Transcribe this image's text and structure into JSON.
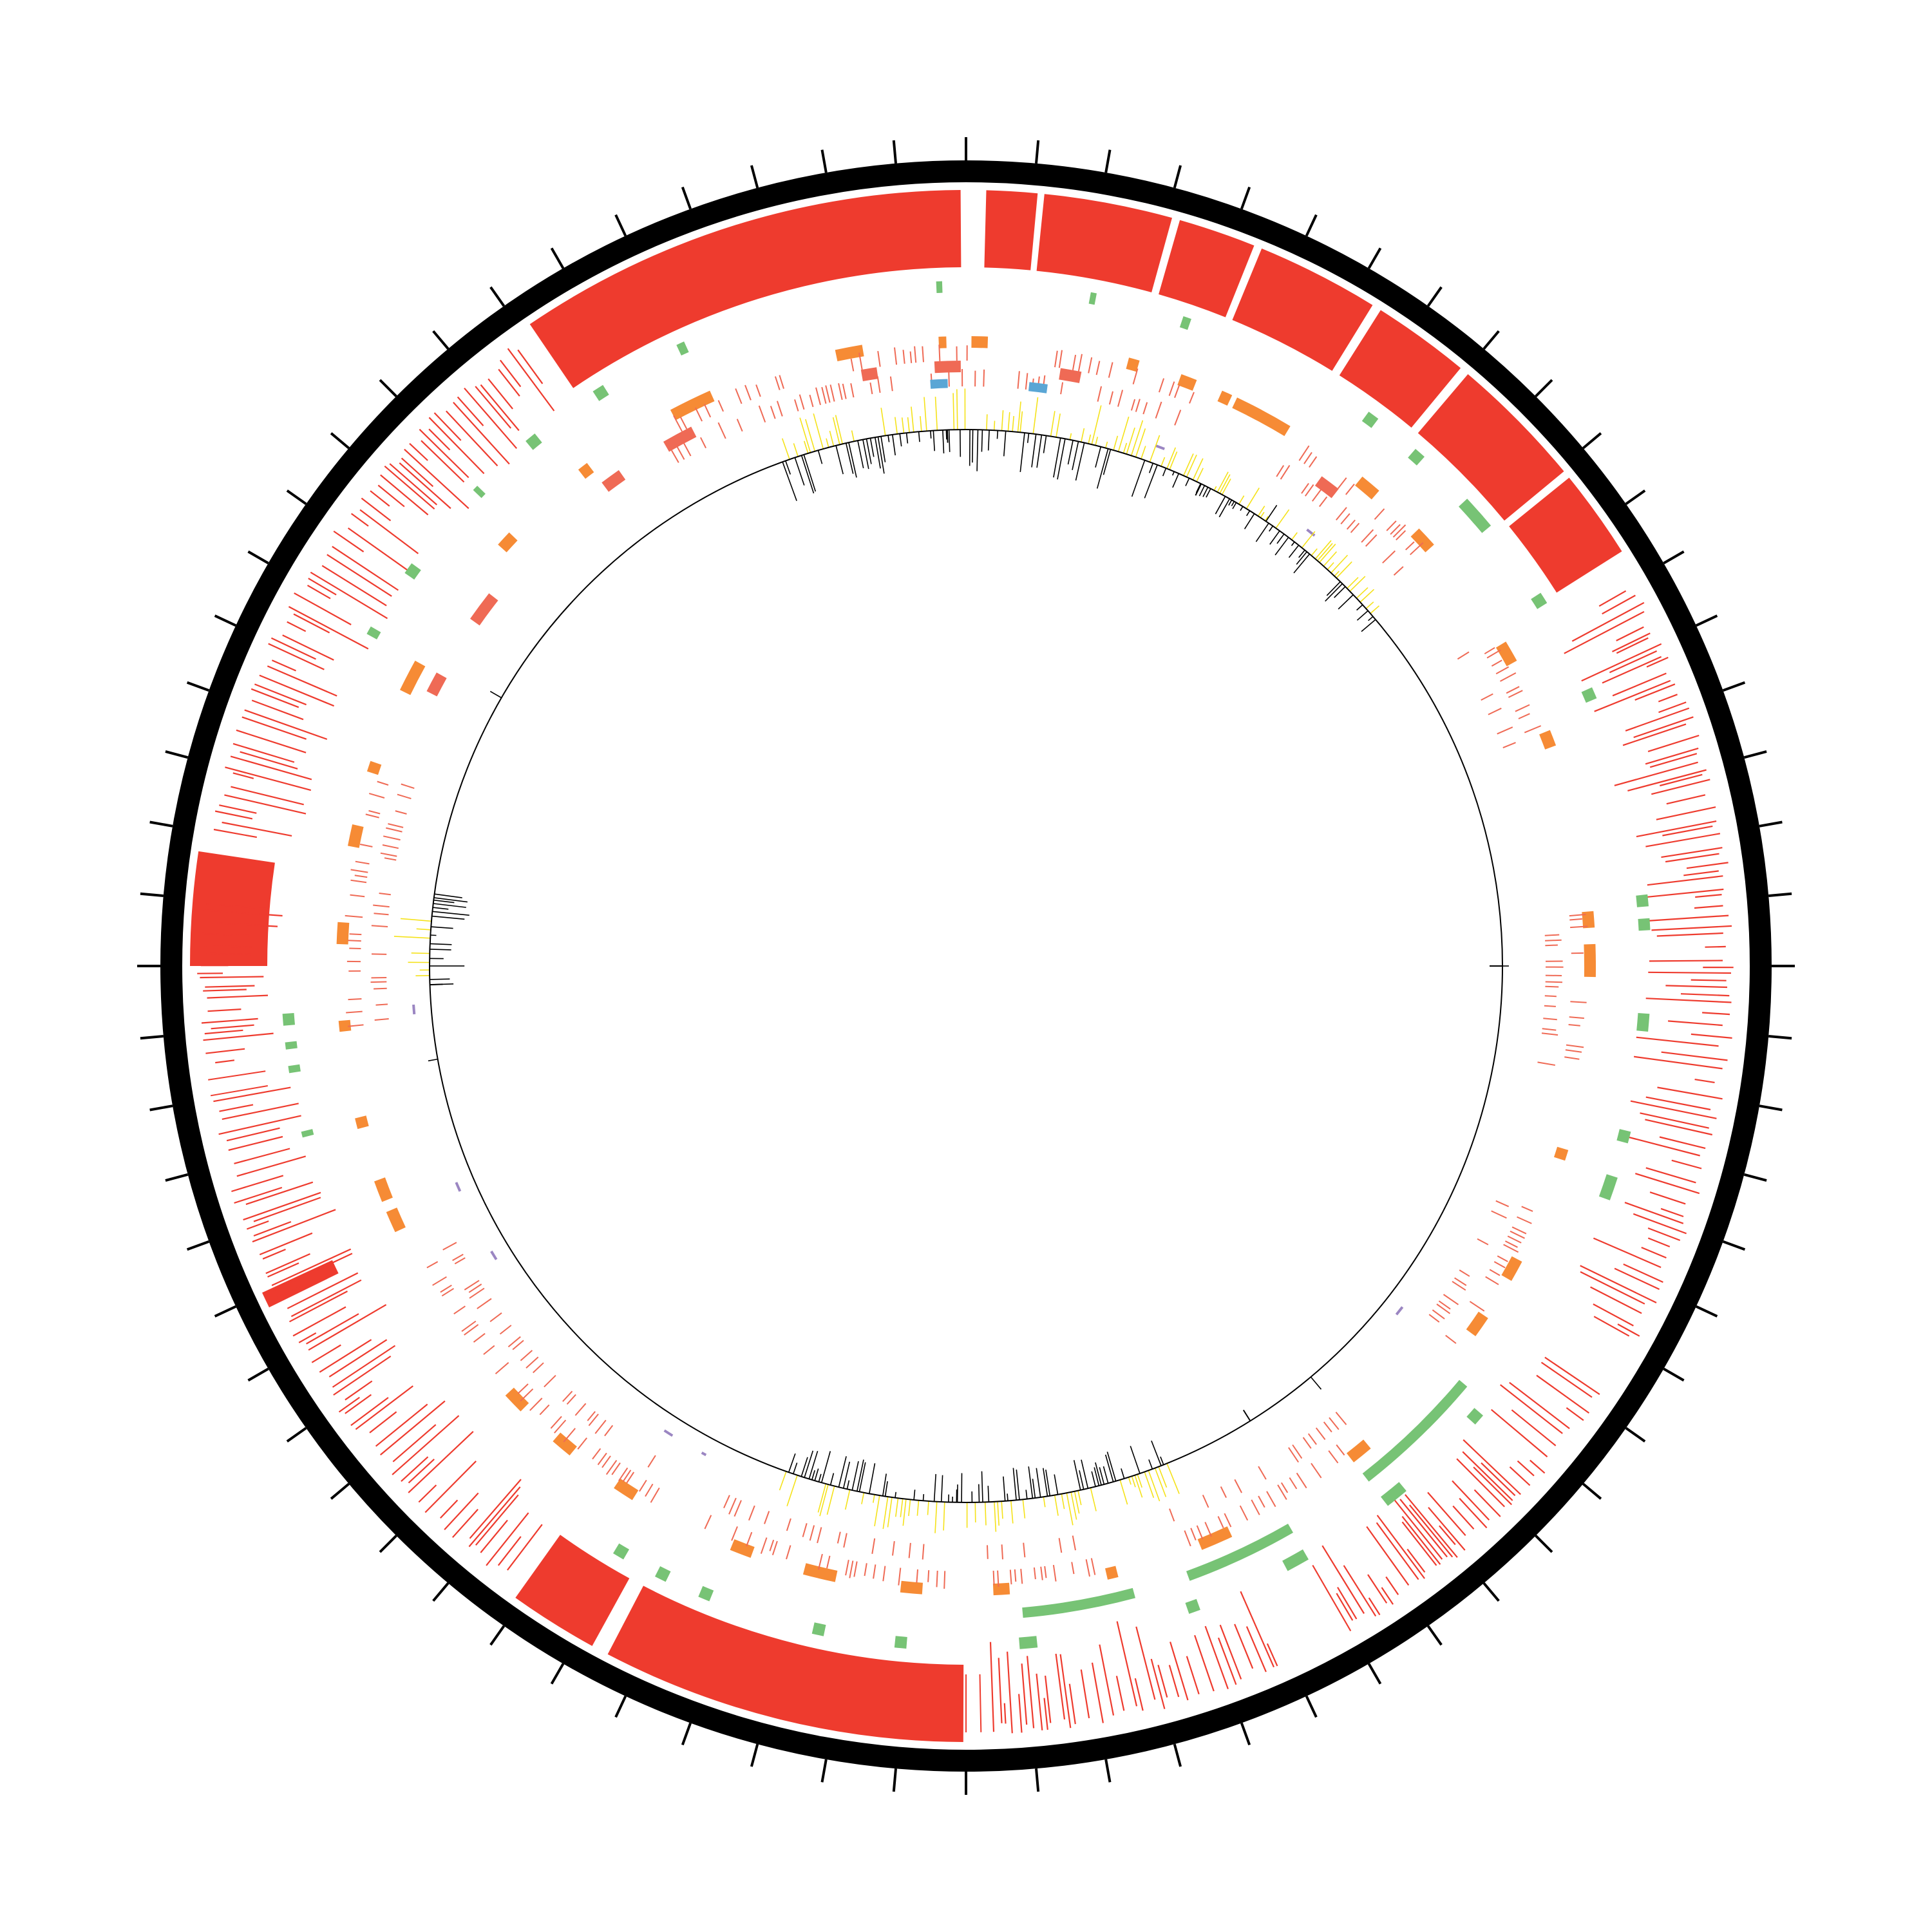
{
  "figure": {
    "type": "circular-genome-map",
    "colors": {
      "backbone": "#000000",
      "cds": "#ee3b2e",
      "cds_inner": "#ef6a55",
      "trna": "#f68b35",
      "repeat": "#77c375",
      "rrna": "#5aa6d5",
      "misc": "#9b86c2",
      "gc_skew_positive": "#f5e21a",
      "gc_skew_negative": "#000000"
    },
    "ticks": {
      "count": 72
    },
    "blocks": [
      {
        "track": "outer-cds",
        "start_deg": -34.2,
        "end_deg": -0.4
      },
      {
        "track": "outer-cds",
        "start_deg": 1.5,
        "end_deg": 5.3
      },
      {
        "track": "outer-cds",
        "start_deg": 5.8,
        "end_deg": 15.4
      },
      {
        "track": "outer-cds",
        "start_deg": 16.0,
        "end_deg": 21.8
      },
      {
        "track": "outer-cds",
        "start_deg": 22.4,
        "end_deg": 31.6
      },
      {
        "track": "outer-cds",
        "start_deg": 32.3,
        "end_deg": 39.6
      },
      {
        "track": "outer-cds",
        "start_deg": 40.3,
        "end_deg": 50.4
      },
      {
        "track": "outer-cds",
        "start_deg": 51.0,
        "end_deg": 57.7
      },
      {
        "track": "outer-cds",
        "start_deg": -90.0,
        "end_deg": -81.5
      },
      {
        "track": "outer-cds",
        "start_deg": -116.1,
        "end_deg": -114.9
      },
      {
        "track": "outer-cds",
        "start_deg": 180.2,
        "end_deg": 207.5
      },
      {
        "track": "outer-cds",
        "start_deg": 208.8,
        "end_deg": 215.5
      }
    ]
  }
}
